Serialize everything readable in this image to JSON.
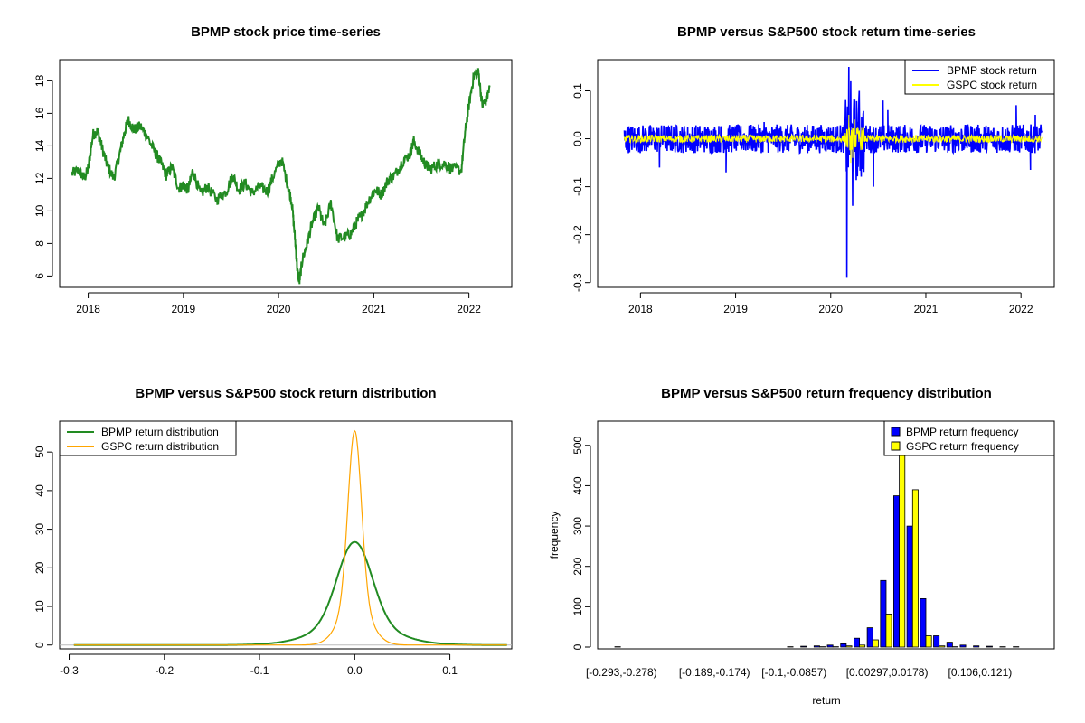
{
  "colors": {
    "price": "#228b22",
    "bpmp_return": "#0000ff",
    "gspc_return": "#ffff00",
    "bpmp_density": "#228b22",
    "gspc_density": "#ffa500",
    "bpmp_bar": "#0000ff",
    "gspc_bar": "#ffff00"
  },
  "chart_data": [
    {
      "type": "line",
      "title": "BPMP stock price time-series",
      "xlabel": "",
      "ylabel": "",
      "xlim": [
        2017.7,
        2022.45
      ],
      "ylim": [
        5.3,
        19.3
      ],
      "x_ticks": [
        "2018",
        "2019",
        "2020",
        "2021",
        "2022"
      ],
      "y_ticks": [
        "6",
        "8",
        "10",
        "12",
        "14",
        "16",
        "18"
      ],
      "series": [
        {
          "x": [
            2017.83,
            2017.9,
            2017.96,
            2018.0,
            2018.05,
            2018.1,
            2018.15,
            2018.2,
            2018.27,
            2018.33,
            2018.38,
            2018.42,
            2018.48,
            2018.55,
            2018.62,
            2018.7,
            2018.76,
            2018.82,
            2018.88,
            2018.95,
            2019.0,
            2019.05,
            2019.1,
            2019.18,
            2019.25,
            2019.35,
            2019.45,
            2019.52,
            2019.58,
            2019.65,
            2019.72,
            2019.8,
            2019.88,
            2019.95,
            2020.03,
            2020.1,
            2020.14,
            2020.17,
            2020.2,
            2020.22,
            2020.25,
            2020.3,
            2020.35,
            2020.42,
            2020.48,
            2020.55,
            2020.62,
            2020.7,
            2020.76,
            2020.82,
            2020.88,
            2020.95,
            2021.02,
            2021.08,
            2021.15,
            2021.22,
            2021.3,
            2021.38,
            2021.42,
            2021.5,
            2021.55,
            2021.6,
            2021.68,
            2021.75,
            2021.82,
            2021.92,
            2021.96,
            2022.0,
            2022.05,
            2022.1,
            2022.14,
            2022.18,
            2022.22
          ],
          "y": [
            12.3,
            12.5,
            12.0,
            12.6,
            14.7,
            14.9,
            13.8,
            12.8,
            12.0,
            13.5,
            14.8,
            15.6,
            15.0,
            15.2,
            14.6,
            13.6,
            13.0,
            12.2,
            12.7,
            11.4,
            11.6,
            11.3,
            12.5,
            11.0,
            11.5,
            10.7,
            11.2,
            12.2,
            11.3,
            11.7,
            11.1,
            11.5,
            11.2,
            12.2,
            13.2,
            11.5,
            10.5,
            8.5,
            6.2,
            5.7,
            7.0,
            8.0,
            9.2,
            10.2,
            9.0,
            10.5,
            8.3,
            8.4,
            8.6,
            9.3,
            9.8,
            10.7,
            11.3,
            11.0,
            11.9,
            12.2,
            13.0,
            13.5,
            14.3,
            13.3,
            12.8,
            12.6,
            12.9,
            12.9,
            12.6,
            12.5,
            14.8,
            16.5,
            18.3,
            18.5,
            16.5,
            16.8,
            17.6
          ]
        }
      ]
    },
    {
      "type": "line",
      "title": "BPMP versus S&P500 stock return time-series",
      "xlabel": "",
      "ylabel": "",
      "xlim": [
        2017.55,
        2022.35
      ],
      "ylim": [
        -0.31,
        0.165
      ],
      "x_ticks": [
        "2018",
        "2019",
        "2020",
        "2021",
        "2022"
      ],
      "y_ticks": [
        "-0.3",
        "-0.2",
        "-0.1",
        "0.0",
        "0.1"
      ],
      "legend": {
        "position": "top-right",
        "entries": [
          "BPMP stock return",
          "GSPC stock return"
        ]
      },
      "series": [
        {
          "name": "BPMP stock return",
          "amplitude": 0.03,
          "spikes": [
            [
              2020.17,
              -0.29
            ],
            [
              2020.19,
              0.15
            ],
            [
              2020.21,
              0.12
            ],
            [
              2020.23,
              -0.14
            ],
            [
              2020.3,
              0.1
            ],
            [
              2020.55,
              0.08
            ],
            [
              2020.6,
              0.06
            ],
            [
              2020.45,
              -0.1
            ],
            [
              2018.2,
              -0.06
            ],
            [
              2018.9,
              -0.07
            ],
            [
              2019.3,
              0.035
            ],
            [
              2021.95,
              0.07
            ],
            [
              2022.1,
              -0.065
            ],
            [
              2022.15,
              0.05
            ]
          ]
        },
        {
          "name": "GSPC stock return",
          "amplitude": 0.008,
          "spikes": [
            [
              2020.19,
              0.05
            ],
            [
              2020.21,
              -0.05
            ],
            [
              2020.25,
              0.04
            ],
            [
              2020.23,
              -0.04
            ]
          ]
        }
      ]
    },
    {
      "type": "line",
      "title": "BPMP versus S&P500 stock return distribution",
      "xlabel": "",
      "ylabel": "",
      "xlim": [
        -0.31,
        0.165
      ],
      "ylim": [
        -1,
        58
      ],
      "x_ticks": [
        "-0.3",
        "-0.2",
        "-0.1",
        "0.0",
        "0.1"
      ],
      "y_ticks": [
        "0",
        "10",
        "20",
        "30",
        "40",
        "50"
      ],
      "legend": {
        "position": "top-left",
        "entries": [
          "BPMP return distribution",
          "GSPC return distribution"
        ]
      },
      "series": [
        {
          "name": "BPMP return distribution",
          "peak": 26.7,
          "center": 0.0,
          "sd": 0.018
        },
        {
          "name": "GSPC return distribution",
          "peak": 55.5,
          "center": 0.0,
          "sd": 0.007
        }
      ]
    },
    {
      "type": "bar",
      "title": "BPMP versus S&P500 return frequency distribution",
      "xlabel": "return",
      "ylabel": "frequency",
      "ylim": [
        0,
        560
      ],
      "y_ticks": [
        "0",
        "100",
        "200",
        "300",
        "400",
        "500"
      ],
      "tick_labels": [
        "[-0.293,-0.278)",
        "[-0.189,-0.174)",
        "[-0.1,-0.0857)",
        "[0.00297,0.0178)",
        "[0.106,0.121)"
      ],
      "tick_label_bins": [
        0,
        7,
        13,
        20,
        27
      ],
      "legend": {
        "position": "top-right",
        "entries": [
          "BPMP return frequency",
          "GSPC return frequency"
        ]
      },
      "series": [
        {
          "name": "BPMP return frequency",
          "values": [
            1,
            0,
            0,
            0,
            0,
            0,
            0,
            0,
            0,
            0,
            0,
            0,
            0,
            1,
            2,
            3,
            5,
            8,
            22,
            48,
            165,
            375,
            300,
            120,
            28,
            12,
            5,
            3,
            2,
            1,
            1,
            0
          ]
        },
        {
          "name": "GSPC return frequency",
          "values": [
            0,
            0,
            0,
            0,
            0,
            0,
            0,
            0,
            0,
            0,
            0,
            0,
            0,
            0,
            0,
            1,
            1,
            3,
            5,
            18,
            82,
            570,
            390,
            28,
            3,
            1,
            0,
            0,
            0,
            0,
            0,
            0
          ]
        }
      ]
    }
  ]
}
